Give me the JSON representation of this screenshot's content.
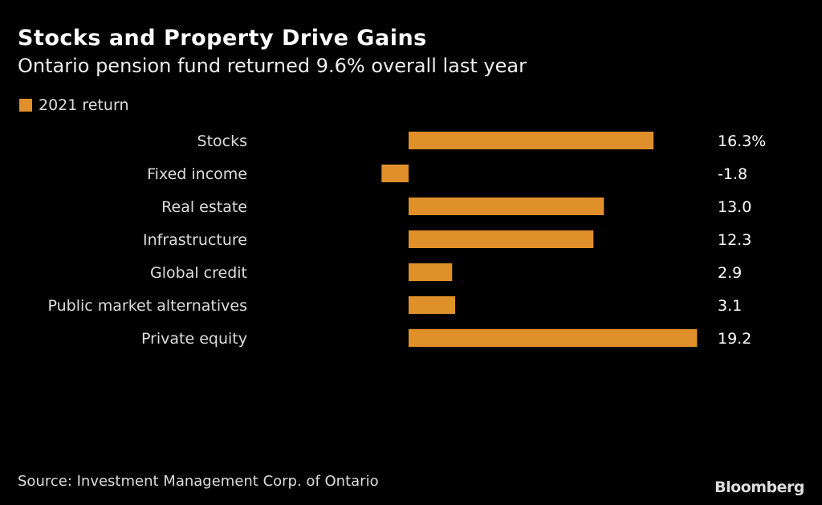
{
  "chart_data": {
    "type": "bar",
    "orientation": "horizontal",
    "title": "Stocks and Property Drive Gains",
    "subtitle": "Ontario pension fund returned 9.6% overall last year",
    "categories": [
      "Stocks",
      "Fixed income",
      "Real estate",
      "Infrastructure",
      "Global credit",
      "Public market alternatives",
      "Private equity"
    ],
    "series": [
      {
        "name": "2021 return",
        "color": "#E0902A",
        "values": [
          16.3,
          -1.8,
          13.0,
          12.3,
          2.9,
          3.1,
          19.2
        ]
      }
    ],
    "data_labels": [
      "16.3%",
      "-1.8",
      "13.0",
      "12.3",
      "2.9",
      "3.1",
      "19.2"
    ],
    "legend_position": "top-left",
    "grid": false,
    "xlim": [
      -1.8,
      19.2
    ]
  },
  "source": "Source: Investment Management Corp. of Ontario",
  "brand": "Bloomberg"
}
